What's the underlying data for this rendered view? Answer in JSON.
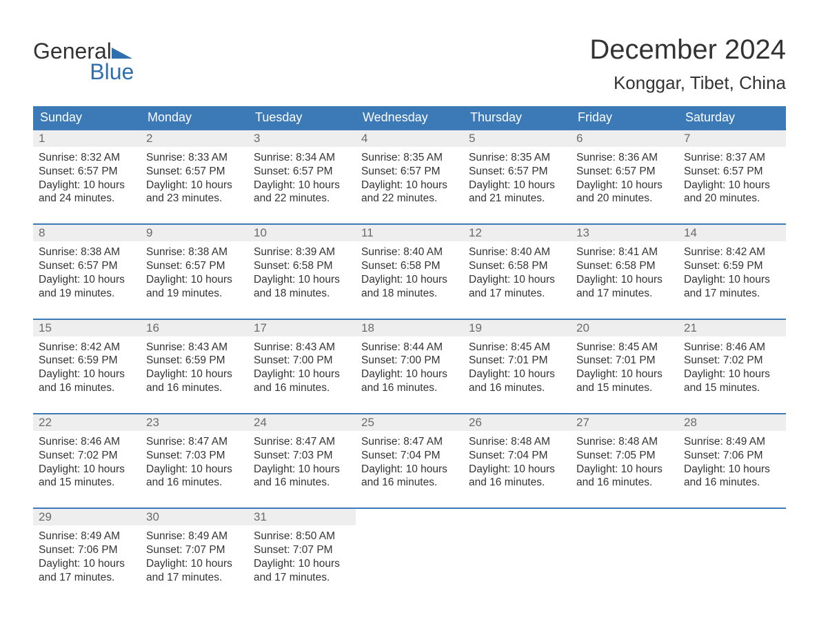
{
  "logo": {
    "top": "General",
    "bottom": "Blue"
  },
  "title": "December 2024",
  "location": "Konggar, Tibet, China",
  "colors": {
    "header_bg": "#3b79b7",
    "header_text": "#ffffff",
    "daynum_bg": "#eeeeee",
    "daynum_text": "#6a6a6a",
    "body_text": "#333333",
    "logo_blue": "#2f6fae",
    "row_border": "#3b79b7",
    "page_bg": "#ffffff"
  },
  "layout": {
    "columns": 7,
    "month_title_fontsize": 40,
    "location_fontsize": 26,
    "header_fontsize": 18,
    "daynum_fontsize": 17,
    "body_fontsize": 15.5
  },
  "weekdays": [
    "Sunday",
    "Monday",
    "Tuesday",
    "Wednesday",
    "Thursday",
    "Friday",
    "Saturday"
  ],
  "weeks": [
    [
      {
        "n": "1",
        "sr": "Sunrise: 8:32 AM",
        "ss": "Sunset: 6:57 PM",
        "d1": "Daylight: 10 hours",
        "d2": "and 24 minutes."
      },
      {
        "n": "2",
        "sr": "Sunrise: 8:33 AM",
        "ss": "Sunset: 6:57 PM",
        "d1": "Daylight: 10 hours",
        "d2": "and 23 minutes."
      },
      {
        "n": "3",
        "sr": "Sunrise: 8:34 AM",
        "ss": "Sunset: 6:57 PM",
        "d1": "Daylight: 10 hours",
        "d2": "and 22 minutes."
      },
      {
        "n": "4",
        "sr": "Sunrise: 8:35 AM",
        "ss": "Sunset: 6:57 PM",
        "d1": "Daylight: 10 hours",
        "d2": "and 22 minutes."
      },
      {
        "n": "5",
        "sr": "Sunrise: 8:35 AM",
        "ss": "Sunset: 6:57 PM",
        "d1": "Daylight: 10 hours",
        "d2": "and 21 minutes."
      },
      {
        "n": "6",
        "sr": "Sunrise: 8:36 AM",
        "ss": "Sunset: 6:57 PM",
        "d1": "Daylight: 10 hours",
        "d2": "and 20 minutes."
      },
      {
        "n": "7",
        "sr": "Sunrise: 8:37 AM",
        "ss": "Sunset: 6:57 PM",
        "d1": "Daylight: 10 hours",
        "d2": "and 20 minutes."
      }
    ],
    [
      {
        "n": "8",
        "sr": "Sunrise: 8:38 AM",
        "ss": "Sunset: 6:57 PM",
        "d1": "Daylight: 10 hours",
        "d2": "and 19 minutes."
      },
      {
        "n": "9",
        "sr": "Sunrise: 8:38 AM",
        "ss": "Sunset: 6:57 PM",
        "d1": "Daylight: 10 hours",
        "d2": "and 19 minutes."
      },
      {
        "n": "10",
        "sr": "Sunrise: 8:39 AM",
        "ss": "Sunset: 6:58 PM",
        "d1": "Daylight: 10 hours",
        "d2": "and 18 minutes."
      },
      {
        "n": "11",
        "sr": "Sunrise: 8:40 AM",
        "ss": "Sunset: 6:58 PM",
        "d1": "Daylight: 10 hours",
        "d2": "and 18 minutes."
      },
      {
        "n": "12",
        "sr": "Sunrise: 8:40 AM",
        "ss": "Sunset: 6:58 PM",
        "d1": "Daylight: 10 hours",
        "d2": "and 17 minutes."
      },
      {
        "n": "13",
        "sr": "Sunrise: 8:41 AM",
        "ss": "Sunset: 6:58 PM",
        "d1": "Daylight: 10 hours",
        "d2": "and 17 minutes."
      },
      {
        "n": "14",
        "sr": "Sunrise: 8:42 AM",
        "ss": "Sunset: 6:59 PM",
        "d1": "Daylight: 10 hours",
        "d2": "and 17 minutes."
      }
    ],
    [
      {
        "n": "15",
        "sr": "Sunrise: 8:42 AM",
        "ss": "Sunset: 6:59 PM",
        "d1": "Daylight: 10 hours",
        "d2": "and 16 minutes."
      },
      {
        "n": "16",
        "sr": "Sunrise: 8:43 AM",
        "ss": "Sunset: 6:59 PM",
        "d1": "Daylight: 10 hours",
        "d2": "and 16 minutes."
      },
      {
        "n": "17",
        "sr": "Sunrise: 8:43 AM",
        "ss": "Sunset: 7:00 PM",
        "d1": "Daylight: 10 hours",
        "d2": "and 16 minutes."
      },
      {
        "n": "18",
        "sr": "Sunrise: 8:44 AM",
        "ss": "Sunset: 7:00 PM",
        "d1": "Daylight: 10 hours",
        "d2": "and 16 minutes."
      },
      {
        "n": "19",
        "sr": "Sunrise: 8:45 AM",
        "ss": "Sunset: 7:01 PM",
        "d1": "Daylight: 10 hours",
        "d2": "and 16 minutes."
      },
      {
        "n": "20",
        "sr": "Sunrise: 8:45 AM",
        "ss": "Sunset: 7:01 PM",
        "d1": "Daylight: 10 hours",
        "d2": "and 15 minutes."
      },
      {
        "n": "21",
        "sr": "Sunrise: 8:46 AM",
        "ss": "Sunset: 7:02 PM",
        "d1": "Daylight: 10 hours",
        "d2": "and 15 minutes."
      }
    ],
    [
      {
        "n": "22",
        "sr": "Sunrise: 8:46 AM",
        "ss": "Sunset: 7:02 PM",
        "d1": "Daylight: 10 hours",
        "d2": "and 15 minutes."
      },
      {
        "n": "23",
        "sr": "Sunrise: 8:47 AM",
        "ss": "Sunset: 7:03 PM",
        "d1": "Daylight: 10 hours",
        "d2": "and 16 minutes."
      },
      {
        "n": "24",
        "sr": "Sunrise: 8:47 AM",
        "ss": "Sunset: 7:03 PM",
        "d1": "Daylight: 10 hours",
        "d2": "and 16 minutes."
      },
      {
        "n": "25",
        "sr": "Sunrise: 8:47 AM",
        "ss": "Sunset: 7:04 PM",
        "d1": "Daylight: 10 hours",
        "d2": "and 16 minutes."
      },
      {
        "n": "26",
        "sr": "Sunrise: 8:48 AM",
        "ss": "Sunset: 7:04 PM",
        "d1": "Daylight: 10 hours",
        "d2": "and 16 minutes."
      },
      {
        "n": "27",
        "sr": "Sunrise: 8:48 AM",
        "ss": "Sunset: 7:05 PM",
        "d1": "Daylight: 10 hours",
        "d2": "and 16 minutes."
      },
      {
        "n": "28",
        "sr": "Sunrise: 8:49 AM",
        "ss": "Sunset: 7:06 PM",
        "d1": "Daylight: 10 hours",
        "d2": "and 16 minutes."
      }
    ],
    [
      {
        "n": "29",
        "sr": "Sunrise: 8:49 AM",
        "ss": "Sunset: 7:06 PM",
        "d1": "Daylight: 10 hours",
        "d2": "and 17 minutes."
      },
      {
        "n": "30",
        "sr": "Sunrise: 8:49 AM",
        "ss": "Sunset: 7:07 PM",
        "d1": "Daylight: 10 hours",
        "d2": "and 17 minutes."
      },
      {
        "n": "31",
        "sr": "Sunrise: 8:50 AM",
        "ss": "Sunset: 7:07 PM",
        "d1": "Daylight: 10 hours",
        "d2": "and 17 minutes."
      },
      null,
      null,
      null,
      null
    ]
  ]
}
